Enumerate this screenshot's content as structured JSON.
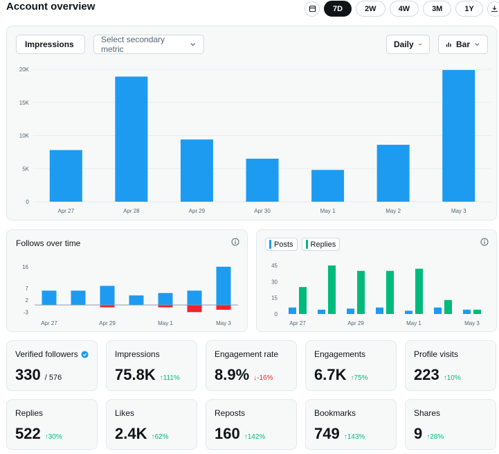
{
  "header": {
    "title": "Account overview",
    "calendar_icon": "calendar-icon",
    "download_icon": "download-icon",
    "ranges": [
      {
        "label": "7D",
        "active": true
      },
      {
        "label": "2W",
        "active": false
      },
      {
        "label": "4W",
        "active": false
      },
      {
        "label": "3M",
        "active": false
      },
      {
        "label": "1Y",
        "active": false
      }
    ]
  },
  "main_chart": {
    "primary_metric": "Impressions",
    "secondary_placeholder": "Select secondary metric",
    "interval": "Daily",
    "chart_type_label": "Bar"
  },
  "follows_panel": {
    "title": "Follows over time",
    "info_icon": "info-icon"
  },
  "posts_panel": {
    "legend": [
      {
        "label": "Posts",
        "color": "#1d9bf0"
      },
      {
        "label": "Replies",
        "color": "#00ba7c"
      }
    ],
    "info_icon": "info-icon"
  },
  "colors": {
    "blue": "#1d9bf0",
    "green": "#00ba7c",
    "red": "#f4212e",
    "dark": "#0f1419"
  },
  "cards": [
    {
      "label": "Verified followers",
      "value": "330",
      "sub": "/ 576",
      "verified": true
    },
    {
      "label": "Impressions",
      "value": "75.8K",
      "delta": "111%",
      "dir": "up"
    },
    {
      "label": "Engagement rate",
      "value": "8.9%",
      "delta": "-16%",
      "dir": "down"
    },
    {
      "label": "Engagements",
      "value": "6.7K",
      "delta": "75%",
      "dir": "up"
    },
    {
      "label": "Profile visits",
      "value": "223",
      "delta": "10%",
      "dir": "up"
    },
    {
      "label": "Replies",
      "value": "522",
      "delta": "30%",
      "dir": "up"
    },
    {
      "label": "Likes",
      "value": "2.4K",
      "delta": "62%",
      "dir": "up"
    },
    {
      "label": "Reposts",
      "value": "160",
      "delta": "142%",
      "dir": "up"
    },
    {
      "label": "Bookmarks",
      "value": "749",
      "delta": "143%",
      "dir": "up"
    },
    {
      "label": "Shares",
      "value": "9",
      "delta": "28%",
      "dir": "up"
    }
  ],
  "chart_data": [
    {
      "type": "bar",
      "categories": [
        "Apr 27",
        "Apr 28",
        "Apr 29",
        "Apr 30",
        "May 1",
        "May 2",
        "May 3"
      ],
      "values": [
        7800,
        18900,
        9400,
        6500,
        4800,
        8600,
        19900
      ],
      "yticks": [
        "0",
        "5K",
        "10K",
        "15K",
        "20K"
      ],
      "ytick_values": [
        0,
        5000,
        10000,
        15000,
        20000
      ],
      "ylim": [
        0,
        20000
      ],
      "color": "#1d9bf0"
    },
    {
      "type": "bar",
      "categories": [
        "Apr 27",
        "Apr 28",
        "Apr 29",
        "Apr 30",
        "May 1",
        "May 2",
        "May 3"
      ],
      "xticks": [
        "Apr 27",
        "Apr 29",
        "May 1",
        "May 3"
      ],
      "series": [
        {
          "values": [
            6,
            6,
            8,
            4,
            5,
            6,
            16
          ],
          "color": "#1d9bf0"
        },
        {
          "values": [
            0,
            0,
            -1,
            0,
            -1,
            -3,
            -2
          ],
          "color": "#f4212e"
        }
      ],
      "yticks": [
        "-3",
        "2",
        "7",
        "16"
      ],
      "ytick_values": [
        -3,
        2,
        7,
        16
      ],
      "ylim": [
        -3,
        16
      ]
    },
    {
      "type": "bar",
      "categories": [
        "Apr 27",
        "Apr 28",
        "Apr 29",
        "Apr 30",
        "May 1",
        "May 2",
        "May 3"
      ],
      "xticks": [
        "Apr 27",
        "Apr 29",
        "May 1",
        "May 3"
      ],
      "series": [
        {
          "name": "Posts",
          "values": [
            6,
            4,
            5,
            6,
            3,
            6,
            4
          ],
          "color": "#1d9bf0"
        },
        {
          "name": "Replies",
          "values": [
            25,
            45,
            40,
            40,
            42,
            13,
            4
          ],
          "color": "#00ba7c"
        }
      ],
      "yticks": [
        "0",
        "15",
        "30",
        "45"
      ],
      "ytick_values": [
        0,
        15,
        30,
        45
      ],
      "ylim": [
        0,
        45
      ]
    }
  ]
}
